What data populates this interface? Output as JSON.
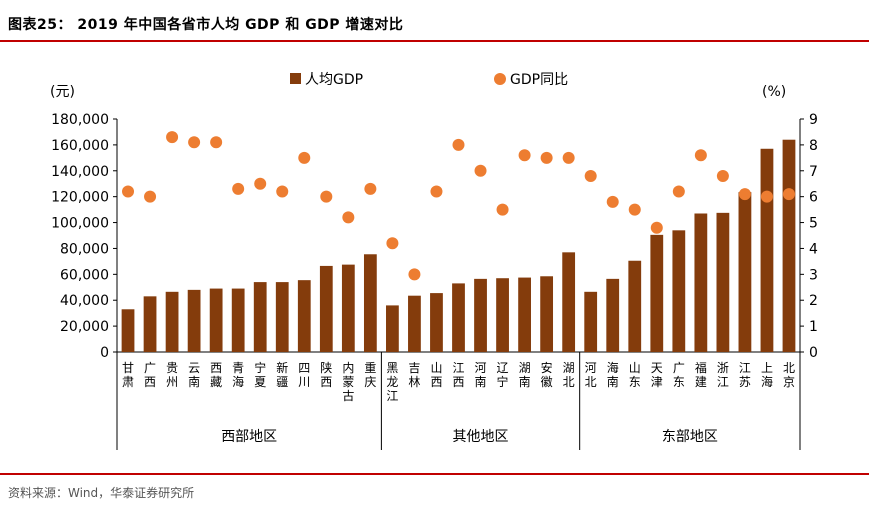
{
  "header": {
    "title": "图表25：   2019 年中国各省市人均 GDP 和 GDP 增速对比"
  },
  "footer": {
    "source": "资料来源：Wind，华泰证券研究所"
  },
  "colors": {
    "bar": "#843c0c",
    "dot": "#ed7d31",
    "rule": "#c00000"
  },
  "chart_data": {
    "type": "bar",
    "left_unit": "(元)",
    "right_unit": "(%)",
    "legend": [
      {
        "name": "人均GDP",
        "marker": "bar"
      },
      {
        "name": "GDP同比",
        "marker": "dot"
      }
    ],
    "legend_position": "top-center",
    "left_ylim": [
      0,
      180000
    ],
    "left_ticks": [
      "0",
      "20,000",
      "40,000",
      "60,000",
      "80,000",
      "100,000",
      "120,000",
      "140,000",
      "160,000",
      "180,000"
    ],
    "right_ylim": [
      0,
      9
    ],
    "right_ticks": [
      "0",
      "1",
      "2",
      "3",
      "4",
      "5",
      "6",
      "7",
      "8",
      "9"
    ],
    "grid": false,
    "categories": [
      "甘肃",
      "广西",
      "贵州",
      "云南",
      "西藏",
      "青海",
      "宁夏",
      "新疆",
      "四川",
      "陕西",
      "内蒙古",
      "重庆",
      "黑龙江",
      "吉林",
      "山西",
      "江西",
      "河南",
      "辽宁",
      "湖南",
      "安徽",
      "湖北",
      "河北",
      "海南",
      "山东",
      "天津",
      "广东",
      "福建",
      "浙江",
      "江苏",
      "上海",
      "北京"
    ],
    "groups": [
      {
        "name": "西部地区",
        "count": 12
      },
      {
        "name": "其他地区",
        "count": 9
      },
      {
        "name": "东部地区",
        "count": 10
      }
    ],
    "series": [
      {
        "name": "人均GDP",
        "type": "bar",
        "axis": "left",
        "values": [
          33000,
          43000,
          46500,
          48000,
          49000,
          49000,
          54000,
          54000,
          55500,
          66500,
          67500,
          75500,
          36000,
          43500,
          45500,
          53000,
          56500,
          57000,
          57500,
          58500,
          77000,
          46500,
          56500,
          70500,
          90500,
          94000,
          107000,
          107500,
          123500,
          157000,
          164000
        ]
      },
      {
        "name": "GDP同比",
        "type": "scatter",
        "axis": "right",
        "values": [
          6.2,
          6.0,
          8.3,
          8.1,
          8.1,
          6.3,
          6.5,
          6.2,
          7.5,
          6.0,
          5.2,
          6.3,
          4.2,
          3.0,
          6.2,
          8.0,
          7.0,
          5.5,
          7.6,
          7.5,
          7.5,
          6.8,
          5.8,
          5.5,
          4.8,
          6.2,
          7.6,
          6.8,
          6.1,
          6.0,
          6.1
        ]
      }
    ]
  }
}
